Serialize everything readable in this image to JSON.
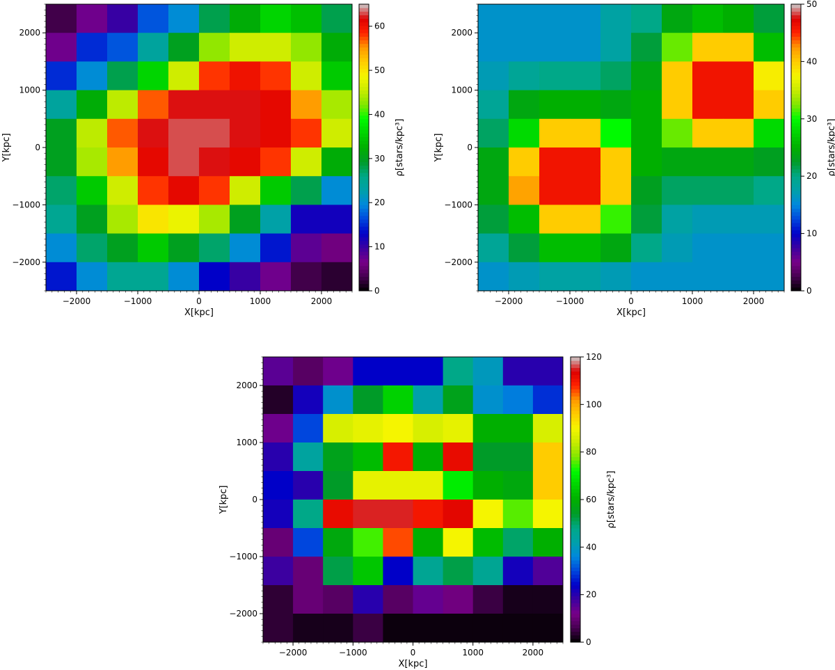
{
  "chart_data": [
    {
      "type": "heatmap",
      "title": "",
      "xlabel": "X[kpc]",
      "ylabel": "Y[kpc]",
      "colorbar_label": "ρ[stars/kpc³]",
      "colormap": "nipy_spectral",
      "x_edges": [
        -2500,
        -2000,
        -1500,
        -1000,
        -500,
        0,
        500,
        1000,
        1500,
        2000,
        2500
      ],
      "y_edges": [
        -2500,
        -2000,
        -1500,
        -1000,
        -500,
        0,
        500,
        1000,
        1500,
        2000,
        2500
      ],
      "xlim": [
        -2500,
        2500
      ],
      "ylim": [
        -2500,
        2500
      ],
      "xticks": [
        -2000,
        -1000,
        0,
        1000,
        2000
      ],
      "yticks": [
        -2000,
        -1000,
        0,
        1000,
        2000
      ],
      "xtick_labels": [
        "−2000",
        "−1000",
        "0",
        "1000",
        "2000"
      ],
      "ytick_labels": [
        "−2000",
        "−1000",
        "0",
        "1000",
        "2000"
      ],
      "vmin": 0,
      "vmax": 65,
      "colorbar_ticks": [
        0,
        10,
        20,
        30,
        40,
        50,
        60
      ],
      "colorbar_tick_labels": [
        "0",
        "10",
        "20",
        "30",
        "40",
        "50",
        "60"
      ],
      "grid": false,
      "values_top_row_first": [
        [
          3,
          7,
          10,
          17,
          20,
          28,
          32,
          36,
          34,
          28
        ],
        [
          7,
          15,
          17,
          24,
          30,
          43,
          46,
          46,
          43,
          32
        ],
        [
          15,
          20,
          28,
          36,
          46,
          58,
          60,
          58,
          46,
          35
        ],
        [
          24,
          32,
          45,
          57,
          62,
          62,
          62,
          61,
          55,
          44
        ],
        [
          30,
          45,
          57,
          62,
          63,
          63,
          62,
          61,
          58,
          46
        ],
        [
          30,
          44,
          55,
          61,
          63,
          62,
          61,
          58,
          46,
          32
        ],
        [
          27,
          35,
          46,
          58,
          61,
          58,
          46,
          35,
          28,
          20
        ],
        [
          25,
          30,
          44,
          50,
          48,
          44,
          30,
          23,
          12,
          12
        ],
        [
          20,
          27,
          30,
          35,
          30,
          27,
          20,
          14,
          8,
          6
        ],
        [
          14,
          20,
          25,
          25,
          20,
          13,
          10,
          7,
          3,
          2
        ]
      ]
    },
    {
      "type": "heatmap",
      "title": "",
      "xlabel": "X[kpc]",
      "ylabel": "Y[kpc]",
      "colorbar_label": "ρ[stars/kpc³]",
      "colormap": "nipy_spectral",
      "x_edges": [
        -2500,
        -2000,
        -1500,
        -1000,
        -500,
        0,
        500,
        1000,
        1500,
        2000,
        2500
      ],
      "y_edges": [
        -2500,
        -2000,
        -1500,
        -1000,
        -500,
        0,
        500,
        1000,
        1500,
        2000,
        2500
      ],
      "xlim": [
        -2500,
        2500
      ],
      "ylim": [
        -2500,
        2500
      ],
      "xticks": [
        -2000,
        -1000,
        0,
        1000,
        2000
      ],
      "yticks": [
        -2000,
        -1000,
        0,
        1000,
        2000
      ],
      "xtick_labels": [
        "−2000",
        "−1000",
        "0",
        "1000",
        "2000"
      ],
      "ytick_labels": [
        "−2000",
        "−1000",
        "0",
        "1000",
        "2000"
      ],
      "vmin": 0,
      "vmax": 50,
      "colorbar_ticks": [
        0,
        10,
        20,
        30,
        40,
        50
      ],
      "colorbar_tick_labels": [
        "0",
        "10",
        "20",
        "30",
        "40",
        "50"
      ],
      "grid": false,
      "values_top_row_first": [
        [
          16,
          16,
          16,
          16,
          18,
          20,
          24,
          26,
          25,
          22
        ],
        [
          16,
          16,
          16,
          16,
          18,
          22,
          32,
          40,
          40,
          26
        ],
        [
          17,
          19,
          20,
          20,
          21,
          24,
          40,
          46,
          46,
          38
        ],
        [
          19,
          24,
          25,
          25,
          24,
          25,
          40,
          46,
          46,
          40
        ],
        [
          21,
          28,
          40,
          40,
          30,
          25,
          32,
          40,
          40,
          28
        ],
        [
          24,
          40,
          46,
          46,
          40,
          25,
          24,
          24,
          24,
          23
        ],
        [
          24,
          42,
          46,
          46,
          40,
          23,
          21,
          21,
          21,
          20
        ],
        [
          22,
          26,
          40,
          40,
          31,
          22,
          18,
          17,
          17,
          17
        ],
        [
          19,
          22,
          26,
          26,
          24,
          20,
          17,
          16,
          16,
          16
        ],
        [
          16,
          17,
          18,
          18,
          17,
          16,
          16,
          16,
          16,
          16
        ]
      ]
    },
    {
      "type": "heatmap",
      "title": "",
      "xlabel": "X[kpc]",
      "ylabel": "Y[kpc]",
      "colorbar_label": "ρ[stars/kpc³]",
      "colormap": "nipy_spectral",
      "x_edges": [
        -2500,
        -2000,
        -1500,
        -1000,
        -500,
        0,
        500,
        1000,
        1500,
        2000,
        2500
      ],
      "y_edges": [
        -2500,
        -2000,
        -1500,
        -1000,
        -500,
        0,
        500,
        1000,
        1500,
        2000,
        2500
      ],
      "xlim": [
        -2500,
        2500
      ],
      "ylim": [
        -2500,
        2500
      ],
      "xticks": [
        -2000,
        -1000,
        0,
        1000,
        2000
      ],
      "yticks": [
        -2000,
        -1000,
        0,
        1000,
        2000
      ],
      "xtick_labels": [
        "−2000",
        "−1000",
        "0",
        "1000",
        "2000"
      ],
      "ytick_labels": [
        "−2000",
        "−1000",
        "0",
        "1000",
        "2000"
      ],
      "vmin": 0,
      "vmax": 120,
      "colorbar_ticks": [
        0,
        20,
        40,
        60,
        80,
        100,
        120
      ],
      "colorbar_tick_labels": [
        "0",
        "20",
        "40",
        "60",
        "80",
        "100",
        "120"
      ],
      "grid": false,
      "values_top_row_first": [
        [
          15,
          8,
          13,
          24,
          24,
          24,
          48,
          40,
          20,
          20
        ],
        [
          3,
          22,
          38,
          54,
          66,
          42,
          56,
          38,
          35,
          28
        ],
        [
          13,
          30,
          86,
          88,
          90,
          86,
          88,
          60,
          60,
          86
        ],
        [
          20,
          44,
          56,
          62,
          110,
          60,
          112,
          54,
          54,
          96
        ],
        [
          24,
          20,
          54,
          88,
          88,
          88,
          70,
          60,
          58,
          96
        ],
        [
          22,
          48,
          112,
          115,
          115,
          110,
          113,
          90,
          76,
          90
        ],
        [
          10,
          30,
          58,
          75,
          106,
          60,
          90,
          62,
          50,
          60
        ],
        [
          18,
          10,
          52,
          64,
          24,
          46,
          52,
          46,
          22,
          16
        ],
        [
          4,
          10,
          8,
          20,
          8,
          14,
          11,
          5,
          2,
          2
        ],
        [
          4,
          2,
          2,
          5,
          1,
          1,
          1,
          1,
          1,
          1
        ]
      ]
    }
  ]
}
